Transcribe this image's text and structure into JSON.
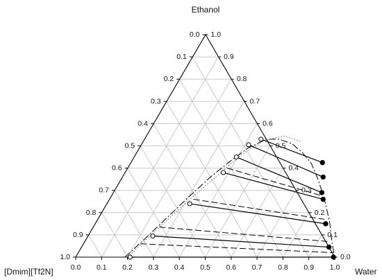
{
  "chart_data": {
    "type": "ternary",
    "vertices": {
      "top": "Ethanol",
      "left": "[Dmim][Tf2N]",
      "right": "Water"
    },
    "bottom_ticks": [
      "0.0",
      "0.1",
      "0.2",
      "0.3",
      "0.4",
      "0.5",
      "0.6",
      "0.7",
      "0.8",
      "0.9",
      "1.0"
    ],
    "left_ticks": [
      "0.0",
      "0.1",
      "0.2",
      "0.3",
      "0.4",
      "0.5",
      "0.6",
      "0.7",
      "0.8",
      "0.9",
      "1.0"
    ],
    "right_ticks": [
      "1.0",
      "0.9",
      "0.8",
      "0.7",
      "0.6",
      "0.5",
      "0.4",
      "0.3",
      "0.2",
      "0.1",
      "0.0"
    ],
    "grid_step": 0.1,
    "tie_lines": [
      {
        "il_rich": {
          "water": 0.21,
          "ethanol": 0.0
        },
        "water_rich": {
          "water": 0.995,
          "ethanol": 0.0
        }
      },
      {
        "il_rich": {
          "water": 0.25,
          "ethanol": 0.095
        },
        "water_rich": {
          "water": 0.955,
          "ethanol": 0.045
        }
      },
      {
        "il_rich": {
          "water": 0.32,
          "ethanol": 0.24
        },
        "water_rich": {
          "water": 0.89,
          "ethanol": 0.15
        }
      },
      {
        "il_rich": {
          "water": 0.38,
          "ethanol": 0.38
        },
        "water_rich": {
          "water": 0.825,
          "ethanol": 0.26
        }
      },
      {
        "il_rich": {
          "water": 0.395,
          "ethanol": 0.45
        },
        "water_rich": {
          "water": 0.805,
          "ethanol": 0.29
        }
      },
      {
        "il_rich": {
          "water": 0.415,
          "ethanol": 0.505
        },
        "water_rich": {
          "water": 0.775,
          "ethanol": 0.36
        }
      },
      {
        "il_rich": {
          "water": 0.45,
          "ethanol": 0.53
        },
        "water_rich": {
          "water": 0.74,
          "ethanol": 0.425
        }
      }
    ],
    "calculated_tie_lines": [
      {
        "il_rich": {
          "water": 0.22,
          "ethanol": 0.06
        },
        "water_rich": {
          "water": 0.985,
          "ethanol": 0.02
        }
      },
      {
        "il_rich": {
          "water": 0.255,
          "ethanol": 0.135
        },
        "water_rich": {
          "water": 0.94,
          "ethanol": 0.07
        }
      },
      {
        "il_rich": {
          "water": 0.325,
          "ethanol": 0.26
        },
        "water_rich": {
          "water": 0.875,
          "ethanol": 0.17
        }
      },
      {
        "il_rich": {
          "water": 0.385,
          "ethanol": 0.4
        },
        "water_rich": {
          "water": 0.815,
          "ethanol": 0.275
        }
      }
    ],
    "binodal_curve": [
      {
        "water": 0.19,
        "ethanol": 0.0
      },
      {
        "water": 0.225,
        "ethanol": 0.08
      },
      {
        "water": 0.265,
        "ethanol": 0.18
      },
      {
        "water": 0.305,
        "ethanol": 0.28
      },
      {
        "water": 0.34,
        "ethanol": 0.36
      },
      {
        "water": 0.38,
        "ethanol": 0.43
      },
      {
        "water": 0.42,
        "ethanol": 0.49
      },
      {
        "water": 0.47,
        "ethanol": 0.53
      },
      {
        "water": 0.52,
        "ethanol": 0.53
      },
      {
        "water": 0.58,
        "ethanol": 0.51
      },
      {
        "water": 0.64,
        "ethanol": 0.47
      },
      {
        "water": 0.7,
        "ethanol": 0.42
      },
      {
        "water": 0.76,
        "ethanol": 0.35
      },
      {
        "water": 0.83,
        "ethanol": 0.26
      },
      {
        "water": 0.9,
        "ethanol": 0.16
      },
      {
        "water": 0.96,
        "ethanol": 0.06
      },
      {
        "water": 1.0,
        "ethanol": 0.0
      }
    ],
    "binodal_dotted": [
      {
        "water": 0.2,
        "ethanol": 0.0
      },
      {
        "water": 0.235,
        "ethanol": 0.085
      },
      {
        "water": 0.28,
        "ethanol": 0.19
      },
      {
        "water": 0.33,
        "ethanol": 0.3
      },
      {
        "water": 0.37,
        "ethanol": 0.38
      },
      {
        "water": 0.41,
        "ethanol": 0.46
      },
      {
        "water": 0.46,
        "ethanol": 0.52
      },
      {
        "water": 0.53,
        "ethanol": 0.545
      },
      {
        "water": 0.61,
        "ethanol": 0.52
      }
    ]
  }
}
